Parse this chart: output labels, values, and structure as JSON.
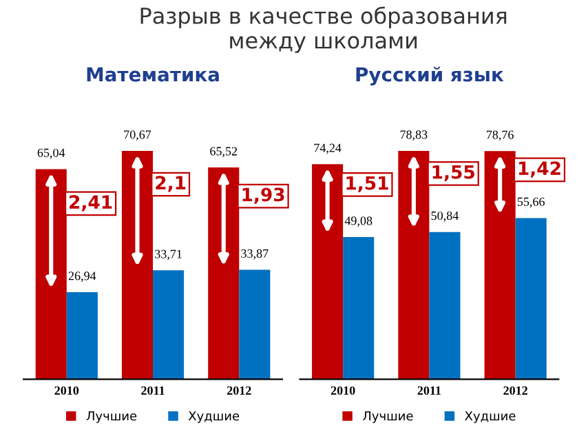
{
  "chart_data": [
    {
      "type": "bar",
      "title": "Разрыв в качестве образования\nмежду школами",
      "subtitle": "Математика",
      "categories": [
        "2010",
        "2011",
        "2012"
      ],
      "series": [
        {
          "name": "Лучшие",
          "color": "#c00000",
          "values": [
            65.04,
            70.67,
            65.52
          ],
          "value_labels": [
            "65,04",
            "70,67",
            "65,52"
          ]
        },
        {
          "name": "Худшие",
          "color": "#0070c0",
          "values": [
            26.94,
            33.71,
            33.87
          ],
          "value_labels": [
            "26,94",
            "33,71",
            "33,87"
          ]
        }
      ],
      "annotations": [
        "2,41",
        "2,1",
        "1,93"
      ],
      "legend": "bottom",
      "grid": false
    },
    {
      "type": "bar",
      "subtitle": "Русский язык",
      "categories": [
        "2010",
        "2011",
        "2012"
      ],
      "series": [
        {
          "name": "Лучшие",
          "color": "#c00000",
          "values": [
            74.24,
            78.83,
            78.76
          ],
          "value_labels": [
            "74,24",
            "78,83",
            "78,76"
          ]
        },
        {
          "name": "Худшие",
          "color": "#0070c0",
          "values": [
            49.08,
            50.84,
            55.66
          ],
          "value_labels": [
            "49,08",
            "50,84",
            "55,66"
          ]
        }
      ],
      "annotations": [
        "1,51",
        "1,55",
        "1,42"
      ],
      "legend": "bottom",
      "grid": false
    }
  ]
}
